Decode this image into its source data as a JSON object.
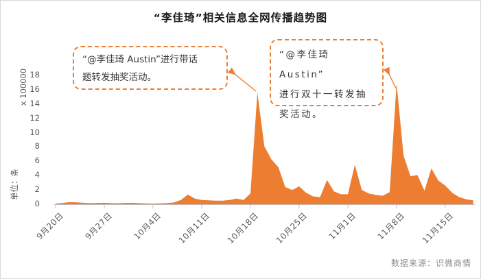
{
  "title": "“李佳琦”相关信息全网传播趋势图",
  "colors": {
    "series": "#ED7D31",
    "annotation_border": "#ED7D31",
    "axis_line": "#BFBFBF",
    "axis_text": "#595959",
    "title_text": "#1A1A1A",
    "footer_text": "#8C8C8C"
  },
  "y_axis": {
    "title": "单位：条",
    "display_unit": "x 100000",
    "ticks": [
      0,
      2,
      4,
      6,
      8,
      10,
      12,
      14,
      16,
      18
    ]
  },
  "x_axis": {
    "labels": [
      "9月20日",
      "9月27日",
      "10月4日",
      "10月11日",
      "10月18日",
      "10月25日",
      "11月1日",
      "11月8日",
      "11月15日"
    ]
  },
  "annotations": [
    {
      "lines": [
        "“@李佳琦 Austin”进行带话",
        "题转发抽奖活动。"
      ],
      "full_text": "“@李佳琦 Austin”进行带话题转发抽奖活动。"
    },
    {
      "lines": [
        "“@李佳琦 Austin”",
        "进行双十一转发抽",
        "奖活动。"
      ],
      "full_text": "“@李佳琦 Austin”进行双十一转发抽奖活动。"
    }
  ],
  "footer": {
    "source": "数据来源：识微商情"
  },
  "chart_data": {
    "type": "area",
    "title": "“李佳琦”相关信息全网传播趋势图",
    "ylabel": "单位：条",
    "y_display_unit": "x 100000",
    "ylim": [
      0,
      18
    ],
    "y_ticks": [
      0,
      2,
      4,
      6,
      8,
      10,
      12,
      14,
      16,
      18
    ],
    "x_tick_labels": [
      "9月20日",
      "9月27日",
      "10月4日",
      "10月11日",
      "10月18日",
      "10月25日",
      "11月1日",
      "11月8日",
      "11月15日"
    ],
    "x_sampling": "daily",
    "x_start_label": "9月20日",
    "x_end_label": "11月19日",
    "values": [
      0.1,
      0.18,
      0.3,
      0.28,
      0.2,
      0.15,
      0.18,
      0.2,
      0.15,
      0.14,
      0.18,
      0.2,
      0.15,
      0.12,
      0.1,
      0.12,
      0.15,
      0.25,
      0.6,
      1.35,
      0.8,
      0.6,
      0.55,
      0.5,
      0.5,
      0.6,
      0.8,
      0.6,
      1.5,
      15.6,
      8.1,
      6.3,
      5.2,
      2.4,
      2.0,
      2.5,
      1.6,
      1.1,
      1.0,
      3.4,
      1.8,
      1.4,
      1.4,
      5.5,
      2.0,
      1.5,
      1.3,
      1.2,
      1.7,
      16.9,
      6.8,
      3.9,
      4.1,
      1.9,
      5.0,
      3.3,
      2.6,
      1.6,
      1.0,
      0.7,
      0.55
    ],
    "peaks": [
      {
        "x_label": "10月19日",
        "value": 15.6,
        "event": "“@李佳琦 Austin”进行带话题转发抽奖活动。"
      },
      {
        "x_label": "11月8日",
        "value": 16.9,
        "event": "“@李佳琦 Austin”进行双十一转发抽奖活动。"
      }
    ],
    "legend_visible": false,
    "grid": false
  }
}
